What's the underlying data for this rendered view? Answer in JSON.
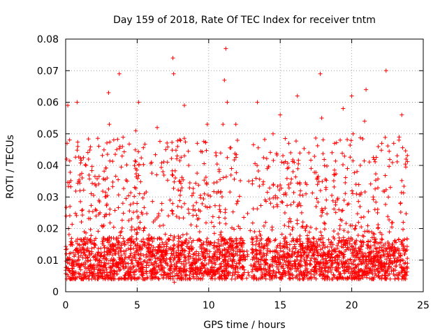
{
  "chart_data": {
    "type": "scatter",
    "title": "Day 159 of 2018, Rate Of TEC Index for receiver tntm",
    "xlabel": "GPS time / hours",
    "ylabel": "ROTI / TECUs",
    "xlim": [
      0,
      25
    ],
    "ylim": [
      0,
      0.08
    ],
    "xticks": [
      0,
      5,
      10,
      15,
      20,
      25
    ],
    "xtick_labels": [
      "0",
      "5",
      "10",
      "15",
      "20",
      "25"
    ],
    "yticks": [
      0,
      0.01,
      0.02,
      0.03,
      0.04,
      0.05,
      0.06,
      0.07,
      0.08
    ],
    "ytick_labels": [
      "0",
      "0.01",
      "0.02",
      "0.03",
      "0.04",
      "0.05",
      "0.06",
      "0.07",
      "0.08"
    ],
    "grid": true,
    "marker": "plus",
    "color": "#ff0000",
    "series": [
      {
        "name": "ROTI",
        "note": "Dense cloud of points from 0 to ~24 h; baseline ~0.005-0.02 TECU, spikes up to ~0.077 near 11.2 h. Representative sample below (x hours, y TECU).",
        "x": [
          0.05,
          0.1,
          0.15,
          0.2,
          0.25,
          0.3,
          0.35,
          0.4,
          0.8,
          0.85,
          0.9,
          1.0,
          1.3,
          1.6,
          2.0,
          2.4,
          2.7,
          2.9,
          3.0,
          3.05,
          3.2,
          3.5,
          3.75,
          3.8,
          4.0,
          4.3,
          4.6,
          4.9,
          5.1,
          5.2,
          5.5,
          5.8,
          6.0,
          6.4,
          6.5,
          6.8,
          7.0,
          7.3,
          7.5,
          7.55,
          7.6,
          7.8,
          8.0,
          8.2,
          8.3,
          8.6,
          8.9,
          9.2,
          9.5,
          9.7,
          9.9,
          10.2,
          10.5,
          10.8,
          11.0,
          11.1,
          11.2,
          11.3,
          11.6,
          11.9,
          12.2,
          12.5,
          12.8,
          13.2,
          13.4,
          13.8,
          14.1,
          14.5,
          14.8,
          15.0,
          15.3,
          15.6,
          15.9,
          16.2,
          16.5,
          16.8,
          17.0,
          17.3,
          17.6,
          17.8,
          17.9,
          18.2,
          18.5,
          18.8,
          19.1,
          19.4,
          19.7,
          19.9,
          20.0,
          20.1,
          20.3,
          20.6,
          20.9,
          21.0,
          21.2,
          21.5,
          21.8,
          22.1,
          22.4,
          22.7,
          23.0,
          23.3,
          23.5,
          23.6,
          23.8,
          23.9
        ],
        "y": [
          0.012,
          0.047,
          0.059,
          0.02,
          0.009,
          0.027,
          0.006,
          0.015,
          0.06,
          0.046,
          0.011,
          0.032,
          0.019,
          0.042,
          0.014,
          0.025,
          0.008,
          0.036,
          0.063,
          0.053,
          0.017,
          0.012,
          0.069,
          0.046,
          0.028,
          0.035,
          0.016,
          0.051,
          0.06,
          0.022,
          0.031,
          0.014,
          0.041,
          0.052,
          0.024,
          0.038,
          0.045,
          0.029,
          0.074,
          0.069,
          0.003,
          0.043,
          0.035,
          0.018,
          0.059,
          0.04,
          0.026,
          0.047,
          0.015,
          0.031,
          0.053,
          0.022,
          0.044,
          0.018,
          0.053,
          0.067,
          0.077,
          0.06,
          0.039,
          0.053,
          0.02,
          0.011,
          0.035,
          0.019,
          0.06,
          0.034,
          0.013,
          0.05,
          0.027,
          0.056,
          0.021,
          0.047,
          0.038,
          0.062,
          0.025,
          0.031,
          0.044,
          0.017,
          0.036,
          0.069,
          0.055,
          0.033,
          0.015,
          0.047,
          0.026,
          0.058,
          0.039,
          0.021,
          0.062,
          0.05,
          0.034,
          0.04,
          0.054,
          0.064,
          0.019,
          0.03,
          0.025,
          0.047,
          0.07,
          0.033,
          0.014,
          0.048,
          0.056,
          0.022,
          0.042,
          0.009
        ]
      }
    ]
  }
}
